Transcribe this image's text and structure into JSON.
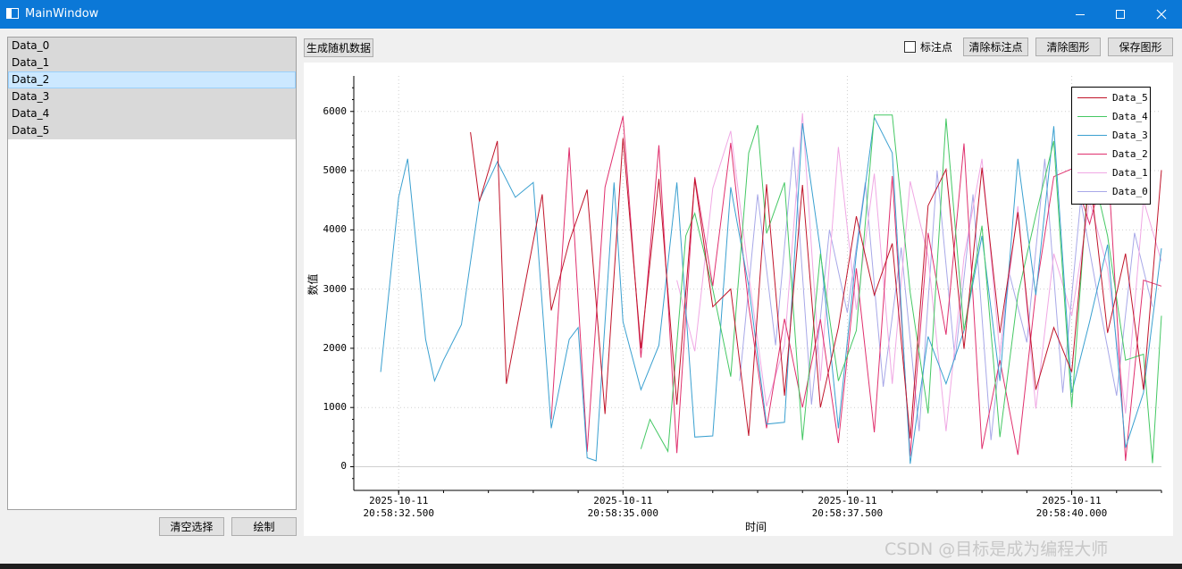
{
  "window": {
    "title": "MainWindow"
  },
  "list": {
    "items": [
      "Data_0",
      "Data_1",
      "Data_2",
      "Data_3",
      "Data_4",
      "Data_5"
    ],
    "selected_index": 2
  },
  "toolbar": {
    "generate_label": "生成随机数据",
    "annotate_label": "标注点",
    "annotate_checked": false,
    "clear_annotations_label": "清除标注点",
    "clear_chart_label": "清除图形",
    "save_chart_label": "保存图形"
  },
  "bottom_buttons": {
    "clear_selection_label": "清空选择",
    "draw_label": "绘制"
  },
  "watermark": "CSDN @目标是成为编程大师",
  "chart_data": {
    "type": "line",
    "xlabel": "时间",
    "ylabel": "数值",
    "ylim": [
      -400,
      6600
    ],
    "yticks": [
      0,
      1000,
      2000,
      3000,
      4000,
      5000,
      6000
    ],
    "xlim": [
      32.0,
      41.0
    ],
    "xticks": [
      {
        "value": 32.5,
        "date": "2025-10-11",
        "time": "20:58:32.500"
      },
      {
        "value": 35.0,
        "date": "2025-10-11",
        "time": "20:58:35.000"
      },
      {
        "value": 37.5,
        "date": "2025-10-11",
        "time": "20:58:37.500"
      },
      {
        "value": 40.0,
        "date": "2025-10-11",
        "time": "20:58:40.000"
      }
    ],
    "grid": true,
    "legend_position": "top-right",
    "series": [
      {
        "name": "Data_5",
        "color": "#c0142a",
        "x": [
          33.3,
          33.4,
          33.6,
          33.7,
          33.9,
          34.1,
          34.2,
          34.4,
          34.6,
          34.8,
          35.0,
          35.2,
          35.4,
          35.6,
          35.8,
          36.0,
          36.2,
          36.4,
          36.6,
          36.8,
          37.0,
          37.2,
          37.4,
          37.6,
          37.8,
          38.0,
          38.2,
          38.4,
          38.6,
          38.8,
          39.0,
          39.2,
          39.4,
          39.6,
          39.8,
          40.0,
          40.2,
          40.4,
          40.6,
          40.8,
          41.0
        ],
        "y": [
          5650,
          4480,
          5500,
          1400,
          3010,
          4600,
          2640,
          3800,
          4680,
          890,
          5550,
          2000,
          4860,
          1050,
          4860,
          2700,
          3000,
          520,
          4770,
          1200,
          4760,
          1000,
          2350,
          4230,
          2900,
          3770,
          480,
          4410,
          5020,
          1990,
          5050,
          2260,
          4300,
          1300,
          2350,
          1600,
          4960,
          2260,
          3600,
          1300,
          5010
        ]
      },
      {
        "name": "Data_4",
        "color": "#45c864",
        "x": [
          35.2,
          35.3,
          35.5,
          35.7,
          35.8,
          36.0,
          36.2,
          36.4,
          36.5,
          36.6,
          36.8,
          37.0,
          37.2,
          37.4,
          37.6,
          37.8,
          38.0,
          38.2,
          38.4,
          38.6,
          38.8,
          39.0,
          39.2,
          39.4,
          39.6,
          39.8,
          40.0,
          40.2,
          40.4,
          40.6,
          40.8,
          40.9,
          41.0
        ],
        "y": [
          300,
          800,
          260,
          3900,
          4280,
          3000,
          1520,
          5300,
          5770,
          3940,
          4800,
          450,
          3600,
          1450,
          2300,
          5940,
          5940,
          2940,
          900,
          5880,
          2300,
          4070,
          500,
          2900,
          4250,
          5500,
          1000,
          5220,
          3900,
          1800,
          1900,
          60,
          2550
        ]
      },
      {
        "name": "Data_3",
        "color": "#3aa0d0",
        "x": [
          32.3,
          32.5,
          32.6,
          32.8,
          32.9,
          33.0,
          33.2,
          33.4,
          33.6,
          33.8,
          34.0,
          34.2,
          34.4,
          34.5,
          34.6,
          34.7,
          34.9,
          35.0,
          35.2,
          35.4,
          35.6,
          35.8,
          36.0,
          36.2,
          36.4,
          36.6,
          36.8,
          37.0,
          37.2,
          37.4,
          37.6,
          37.8,
          38.0,
          38.2,
          38.4,
          38.6,
          38.8,
          39.0,
          39.2,
          39.4,
          39.6,
          39.8,
          40.0,
          40.2,
          40.4,
          40.6,
          40.8,
          41.0
        ],
        "y": [
          1600,
          4550,
          5200,
          2150,
          1450,
          1800,
          2400,
          4500,
          5150,
          4550,
          4800,
          650,
          2150,
          2350,
          150,
          100,
          4800,
          2450,
          1300,
          2050,
          4800,
          500,
          520,
          4720,
          3050,
          720,
          750,
          5800,
          3650,
          650,
          3600,
          5900,
          5300,
          50,
          2200,
          1400,
          2300,
          3900,
          1450,
          5200,
          2900,
          5750,
          1250,
          2450,
          3750,
          320,
          1250,
          3690
        ]
      },
      {
        "name": "Data_2",
        "color": "#e0306e",
        "x": [
          34.2,
          34.4,
          34.6,
          34.8,
          35.0,
          35.2,
          35.4,
          35.6,
          35.8,
          36.0,
          36.2,
          36.4,
          36.6,
          36.8,
          37.0,
          37.2,
          37.4,
          37.6,
          37.8,
          38.0,
          38.2,
          38.4,
          38.6,
          38.8,
          39.0,
          39.2,
          39.4,
          39.6,
          39.8,
          40.0,
          40.2,
          40.4,
          40.6,
          40.8,
          41.0
        ],
        "y": [
          800,
          5390,
          250,
          4720,
          5920,
          1840,
          5430,
          230,
          4890,
          3050,
          5470,
          2720,
          650,
          2500,
          1000,
          2490,
          400,
          3350,
          580,
          4910,
          180,
          3950,
          2230,
          5460,
          300,
          1800,
          200,
          2950,
          4900,
          5030,
          4100,
          5250,
          100,
          3150,
          3050
        ]
      },
      {
        "name": "Data_1",
        "color": "#f0a8e4",
        "x": [
          35.6,
          35.8,
          36.0,
          36.2,
          36.4,
          36.6,
          36.8,
          37.0,
          37.2,
          37.4,
          37.6,
          37.8,
          38.0,
          38.2,
          38.4,
          38.6,
          38.8,
          39.0,
          39.2,
          39.4,
          39.6,
          39.8,
          40.0,
          40.2,
          40.4,
          40.6,
          40.8,
          41.0
        ],
        "y": [
          3150,
          1950,
          4700,
          5670,
          3250,
          1020,
          2050,
          5970,
          1450,
          5400,
          2650,
          4950,
          1400,
          4820,
          3550,
          600,
          3540,
          5200,
          1900,
          4400,
          980,
          3600,
          2550,
          4490,
          3350,
          900,
          4500,
          3470
        ]
      },
      {
        "name": "Data_0",
        "color": "#a8a8e8",
        "x": [
          36.3,
          36.5,
          36.7,
          36.9,
          37.1,
          37.3,
          37.5,
          37.7,
          37.9,
          38.1,
          38.3,
          38.5,
          38.7,
          38.9,
          39.1,
          39.3,
          39.5,
          39.7,
          39.9,
          40.1,
          40.3,
          40.5,
          40.7,
          40.9
        ],
        "y": [
          1450,
          4600,
          2050,
          5400,
          1050,
          4000,
          2600,
          4800,
          1350,
          3700,
          600,
          5000,
          1800,
          4600,
          450,
          3300,
          2100,
          5200,
          1250,
          4500,
          2800,
          1200,
          3950,
          2700
        ]
      }
    ]
  }
}
